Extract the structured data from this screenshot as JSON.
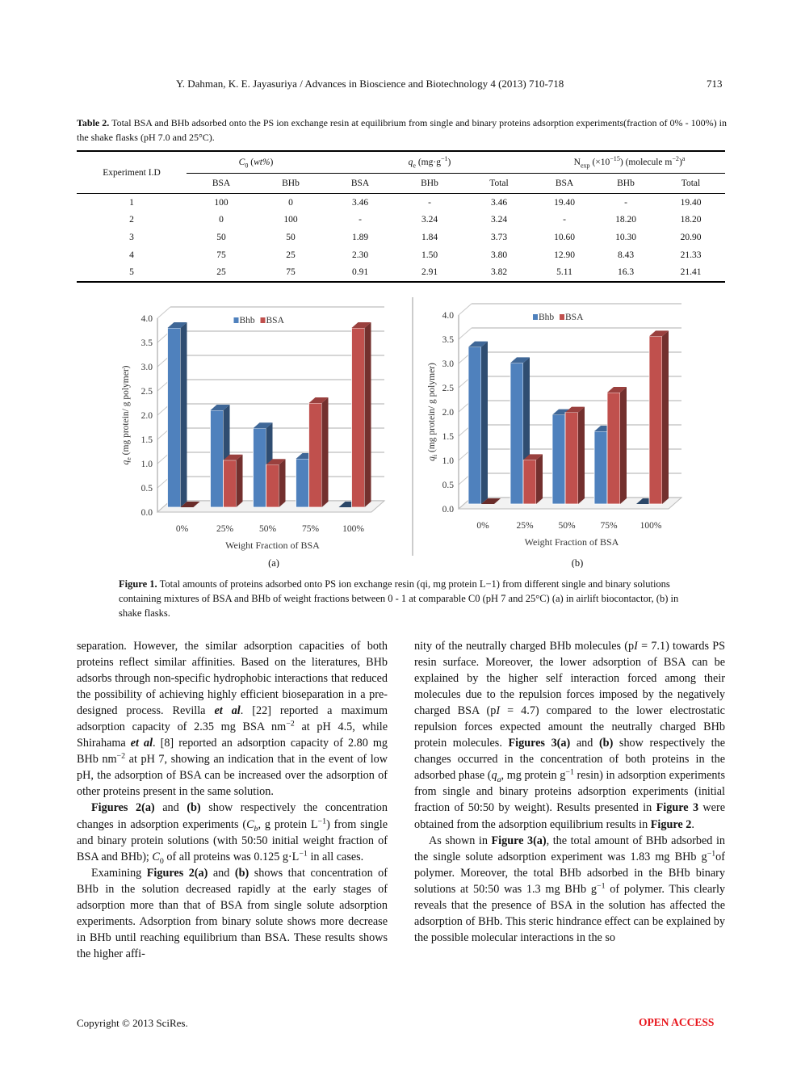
{
  "header": {
    "running_title": "Y. Dahman, K. E. Jayasuriya / Advances in Bioscience and Biotechnology 4 (2013) 710-718",
    "page_number": "713"
  },
  "table2": {
    "label": "Table 2.",
    "caption": " Total BSA and BHb adsorbed onto the PS ion exchange resin at equilibrium from single and binary proteins adsorption experiments(fraction of 0% - 100%) in the shake flasks (pH 7.0 and 25°C).",
    "col_group_headers": [
      "Experiment I.D",
      "C0 (wt%)",
      "qe (mg·g−1)",
      "Nexp (×10−15) (molecule m−2)a"
    ],
    "sub_headers": [
      "BSA",
      "BHb",
      "BSA",
      "BHb",
      "Total",
      "BSA",
      "BHb",
      "Total"
    ],
    "rows": [
      [
        "1",
        "100",
        "0",
        "3.46",
        "-",
        "3.46",
        "19.40",
        "-",
        "19.40"
      ],
      [
        "2",
        "0",
        "100",
        "-",
        "3.24",
        "3.24",
        "-",
        "18.20",
        "18.20"
      ],
      [
        "3",
        "50",
        "50",
        "1.89",
        "1.84",
        "3.73",
        "10.60",
        "10.30",
        "20.90"
      ],
      [
        "4",
        "75",
        "25",
        "2.30",
        "1.50",
        "3.80",
        "12.90",
        "8.43",
        "21.33"
      ],
      [
        "5",
        "25",
        "75",
        "0.91",
        "2.91",
        "3.82",
        "5.11",
        "16.3",
        "21.41"
      ]
    ]
  },
  "chart_data": [
    {
      "type": "bar",
      "panel": "(a)",
      "title": "",
      "categories": [
        "0%",
        "25%",
        "50%",
        "75%",
        "100%"
      ],
      "series": [
        {
          "name": "Bhb",
          "color": "#4f81bd",
          "values": [
            3.7,
            2.0,
            1.63,
            1.0,
            0.0
          ]
        },
        {
          "name": "BSA",
          "color": "#c0504d",
          "values": [
            0.0,
            0.97,
            0.88,
            2.15,
            3.7
          ]
        }
      ],
      "xlabel": "Weight Fraction of BSA",
      "ylabel": "qe (mg protein/ g polymer)",
      "ylim": [
        0,
        4.0
      ],
      "yticks": [
        "0.0",
        "0.5",
        "1.0",
        "1.5",
        "2.0",
        "2.5",
        "3.0",
        "3.5",
        "4.0"
      ],
      "grid": true,
      "legend_position": "top-center",
      "style": "3d-clustered-column"
    },
    {
      "type": "bar",
      "panel": "(b)",
      "title": "",
      "categories": [
        "0%",
        "25%",
        "50%",
        "75%",
        "100%"
      ],
      "series": [
        {
          "name": "Bhb",
          "color": "#4f81bd",
          "values": [
            3.24,
            2.91,
            1.84,
            1.5,
            0.0
          ]
        },
        {
          "name": "BSA",
          "color": "#c0504d",
          "values": [
            0.0,
            0.91,
            1.89,
            2.3,
            3.46
          ]
        }
      ],
      "xlabel": "Weight Fraction of BSA",
      "ylabel": "qe (mg protein/ g polymer)",
      "ylim": [
        0,
        4.0
      ],
      "yticks": [
        "0.0",
        "0.5",
        "1.0",
        "1.5",
        "2.0",
        "2.5",
        "3.0",
        "3.5",
        "4.0"
      ],
      "grid": true,
      "legend_position": "top-center",
      "style": "3d-clustered-column"
    }
  ],
  "figure1": {
    "label": "Figure 1.",
    "caption": " Total amounts of proteins adsorbed onto PS ion exchange resin (qi, mg protein L−1) from different single and binary solutions containing mixtures of BSA and BHb of weight fractions between 0 - 1 at comparable C0 (pH 7 and 25°C) (a) in airlift biocontactor, (b) in shake flasks.",
    "panel_a": "(a)",
    "panel_b": "(b)"
  },
  "body": {
    "left": [
      "separation. However, the similar adsorption capacities of both proteins reflect similar affinities. Based on the literatures, BHb adsorbs through non-specific hydrophobic interactions that reduced the possibility of achieving highly efficient bioseparation in a pre-designed process. Revilla et al. [22] reported a maximum adsorption capacity of 2.35 mg BSA nm−2 at pH 4.5, while Shirahama et al. [8] reported an adsorption capacity of 2.80 mg BHb nm−2 at pH 7, showing an indication that in the event of low pH, the adsorption of BSA can be increased over the adsorption of other proteins present in the same solution.",
      "Figures 2(a) and (b) show respectively the concentration changes in adsorption experiments (Cb, g protein L−1) from single and binary protein solutions (with 50:50 initial weight fraction of BSA and BHb); C0 of all proteins was 0.125 g·L−1 in all cases.",
      "Examining Figures 2(a) and (b) shows that concentration of BHb in the solution decreased rapidly at the early stages of adsorption more than that of BSA from single solute adsorption experiments. Adsorption from binary solute shows more decrease in BHb until reaching equilibrium than BSA. These results shows the higher affi-"
    ],
    "right": [
      "nity of the neutrally charged BHb molecules (pI = 7.1) towards PS resin surface. Moreover, the lower adsorption of BSA can be explained by the higher self interaction forced among their molecules due to the repulsion forces imposed by the negatively charged BSA (pI = 4.7) compared to the lower electrostatic repulsion forces expected amount the neutrally charged BHb protein molecules. Figures 3(a) and (b) show respectively the changes occurred in the concentration of both proteins in the adsorbed phase (qa, mg protein g−1 resin) in adsorption experiments from single and binary proteins adsorption experiments (initial fraction of 50:50 by weight). Results presented in Figure 3 were obtained from the adsorption equilibrium results in Figure 2.",
      "As shown in Figure 3(a), the total amount of BHb adsorbed in the single solute adsorption experiment was 1.83 mg BHb g−1of polymer. Moreover, the total BHb adsorbed in the BHb binary solutions at 50:50 was 1.3 mg BHb g−1 of polymer. This clearly reveals that the presence of BSA in the solution has affected the adsorption of BHb. This steric hindrance effect can be explained by the possible molecular interactions in the so"
    ]
  },
  "footer": {
    "copyright": "Copyright © 2013 SciRes.",
    "open_access": "OPEN ACCESS",
    "open_access_color": "#e8141b"
  }
}
